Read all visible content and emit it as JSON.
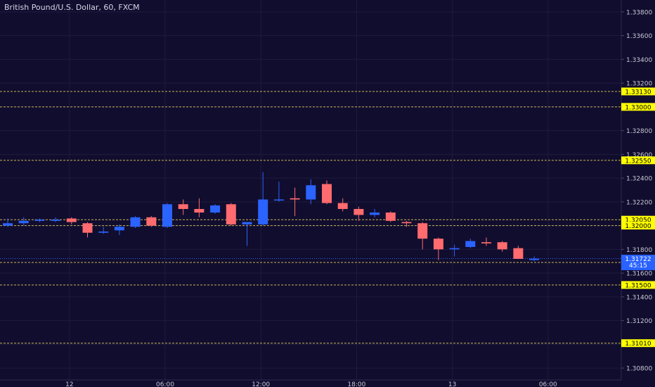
{
  "chart_data": {
    "type": "candlestick",
    "title": "British Pound/U.S. Dollar, 60, FXCM",
    "colors": {
      "background": "#110d2e",
      "up": "#2b63ff",
      "down": "#ff6b6e",
      "level_line": "#c8b45a",
      "label_bg": "#ffff00",
      "grid": "#1f1b3e",
      "axis_text": "#c8c8d6",
      "current_price_bg": "#2962ff"
    },
    "ylim": [
      1.307,
      1.339
    ],
    "y_ticks": [
      "1.30800",
      "1.31000",
      "1.31200",
      "1.31400",
      "1.31600",
      "1.31800",
      "1.32000",
      "1.32200",
      "1.32400",
      "1.32600",
      "1.32800",
      "1.33000",
      "1.33200",
      "1.33400",
      "1.33600",
      "1.33800"
    ],
    "x_ticks": [
      {
        "label": "12",
        "index": 4
      },
      {
        "label": "06:00",
        "index": 10
      },
      {
        "label": "12:00",
        "index": 16
      },
      {
        "label": "18:00",
        "index": 22
      },
      {
        "label": "13",
        "index": 28
      },
      {
        "label": "06:00",
        "index": 34
      }
    ],
    "levels": [
      {
        "value": 1.3313,
        "label": "1.33130"
      },
      {
        "value": 1.33,
        "label": "1.33000"
      },
      {
        "value": 1.3255,
        "label": "1.32550"
      },
      {
        "value": 1.3205,
        "label": "1.32050"
      },
      {
        "value": 1.32,
        "label": "1.32000"
      },
      {
        "value": 1.3169,
        "label": "1.31690"
      },
      {
        "value": 1.315,
        "label": "1.31500"
      },
      {
        "value": 1.3101,
        "label": "1.31010"
      }
    ],
    "current_price": {
      "value": 1.31722,
      "label": "1.31722",
      "countdown": "45:15"
    },
    "candles": [
      {
        "o": 1.32,
        "h": 1.3206,
        "l": 1.3199,
        "c": 1.3202
      },
      {
        "o": 1.3202,
        "h": 1.3207,
        "l": 1.32,
        "c": 1.3204
      },
      {
        "o": 1.3204,
        "h": 1.3206,
        "l": 1.3203,
        "c": 1.3205
      },
      {
        "o": 1.3204,
        "h": 1.3207,
        "l": 1.3203,
        "c": 1.3205
      },
      {
        "o": 1.3206,
        "h": 1.3207,
        "l": 1.3201,
        "c": 1.3203
      },
      {
        "o": 1.3202,
        "h": 1.3203,
        "l": 1.319,
        "c": 1.3194
      },
      {
        "o": 1.3194,
        "h": 1.3199,
        "l": 1.3193,
        "c": 1.3195
      },
      {
        "o": 1.3196,
        "h": 1.3201,
        "l": 1.3192,
        "c": 1.3199
      },
      {
        "o": 1.3199,
        "h": 1.3208,
        "l": 1.3198,
        "c": 1.3207
      },
      {
        "o": 1.3207,
        "h": 1.3208,
        "l": 1.3199,
        "c": 1.32
      },
      {
        "o": 1.3199,
        "h": 1.3219,
        "l": 1.3198,
        "c": 1.3218
      },
      {
        "o": 1.3218,
        "h": 1.3222,
        "l": 1.3209,
        "c": 1.3214
      },
      {
        "o": 1.3214,
        "h": 1.3223,
        "l": 1.3207,
        "c": 1.3211
      },
      {
        "o": 1.3211,
        "h": 1.3218,
        "l": 1.321,
        "c": 1.3217
      },
      {
        "o": 1.3218,
        "h": 1.3219,
        "l": 1.32,
        "c": 1.3201
      },
      {
        "o": 1.3201,
        "h": 1.3203,
        "l": 1.3183,
        "c": 1.3203
      },
      {
        "o": 1.3201,
        "h": 1.3245,
        "l": 1.32,
        "c": 1.3222
      },
      {
        "o": 1.3222,
        "h": 1.3237,
        "l": 1.322,
        "c": 1.3222
      },
      {
        "o": 1.3223,
        "h": 1.3232,
        "l": 1.3208,
        "c": 1.3222
      },
      {
        "o": 1.3222,
        "h": 1.3239,
        "l": 1.3218,
        "c": 1.3234
      },
      {
        "o": 1.3235,
        "h": 1.3238,
        "l": 1.3218,
        "c": 1.3219
      },
      {
        "o": 1.3219,
        "h": 1.3223,
        "l": 1.3212,
        "c": 1.3214
      },
      {
        "o": 1.3214,
        "h": 1.3216,
        "l": 1.3204,
        "c": 1.3209
      },
      {
        "o": 1.3209,
        "h": 1.3214,
        "l": 1.3207,
        "c": 1.3211
      },
      {
        "o": 1.3211,
        "h": 1.3212,
        "l": 1.3203,
        "c": 1.3204
      },
      {
        "o": 1.3203,
        "h": 1.3204,
        "l": 1.3199,
        "c": 1.3202
      },
      {
        "o": 1.3202,
        "h": 1.3203,
        "l": 1.318,
        "c": 1.3189
      },
      {
        "o": 1.3189,
        "h": 1.319,
        "l": 1.3171,
        "c": 1.318
      },
      {
        "o": 1.318,
        "h": 1.3184,
        "l": 1.3174,
        "c": 1.3181
      },
      {
        "o": 1.3182,
        "h": 1.3189,
        "l": 1.3181,
        "c": 1.3187
      },
      {
        "o": 1.3186,
        "h": 1.319,
        "l": 1.3183,
        "c": 1.3185
      },
      {
        "o": 1.3186,
        "h": 1.3187,
        "l": 1.3178,
        "c": 1.318
      },
      {
        "o": 1.3181,
        "h": 1.3183,
        "l": 1.3172,
        "c": 1.3172
      },
      {
        "o": 1.3171,
        "h": 1.3174,
        "l": 1.317,
        "c": 1.31722
      }
    ]
  }
}
